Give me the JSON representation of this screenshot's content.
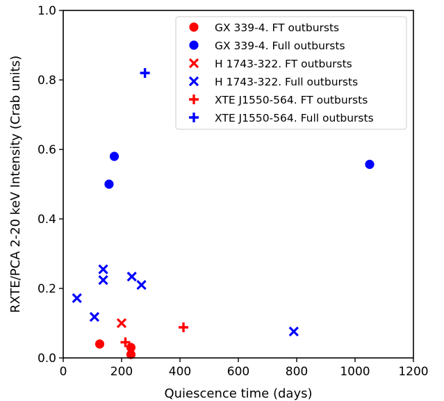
{
  "chart_data": {
    "type": "scatter",
    "title": "",
    "xlabel": "Quiescence time (days)",
    "ylabel": "RXTE/PCA 2-20 keV Intensity (Crab units)",
    "xlim": [
      0,
      1200
    ],
    "ylim": [
      0.0,
      1.0
    ],
    "xticks": [
      0,
      200,
      400,
      600,
      800,
      1000,
      1200
    ],
    "xtick_labels": [
      "0",
      "200",
      "400",
      "600",
      "800",
      "1000",
      "1200"
    ],
    "yticks": [
      0.0,
      0.2,
      0.4,
      0.6,
      0.8,
      1.0
    ],
    "ytick_labels": [
      "0.0",
      "0.2",
      "0.4",
      "0.6",
      "0.8",
      "1.0"
    ],
    "grid": false,
    "legend_position": "top-right",
    "series": [
      {
        "name": "GX 339-4. FT outbursts",
        "marker": "circle",
        "color": "#ff0000",
        "points": [
          [
            125,
            0.04
          ],
          [
            232,
            0.03
          ],
          [
            232,
            0.01
          ]
        ]
      },
      {
        "name": "GX 339-4. Full outbursts",
        "marker": "circle",
        "color": "#0000ff",
        "points": [
          [
            175,
            0.58
          ],
          [
            157,
            0.5
          ],
          [
            1050,
            0.557
          ]
        ]
      },
      {
        "name": "H 1743-322. FT outbursts",
        "marker": "x",
        "color": "#ff0000",
        "points": [
          [
            200,
            0.1
          ]
        ]
      },
      {
        "name": "H 1743-322. Full outbursts",
        "marker": "x",
        "color": "#0000ff",
        "points": [
          [
            47,
            0.172
          ],
          [
            107,
            0.118
          ],
          [
            137,
            0.255
          ],
          [
            137,
            0.224
          ],
          [
            235,
            0.234
          ],
          [
            268,
            0.21
          ],
          [
            790,
            0.076
          ]
        ]
      },
      {
        "name": "XTE J1550-564. FT outbursts",
        "marker": "plus",
        "color": "#ff0000",
        "points": [
          [
            213,
            0.045
          ],
          [
            412,
            0.088
          ]
        ]
      },
      {
        "name": "XTE J1550-564. Full outbursts",
        "marker": "plus",
        "color": "#0000ff",
        "points": [
          [
            280,
            0.82
          ]
        ]
      }
    ]
  }
}
